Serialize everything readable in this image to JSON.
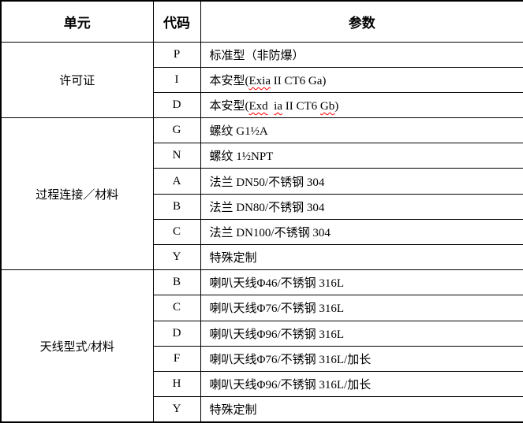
{
  "colors": {
    "border": "#000000",
    "text": "#000000",
    "background": "#ffffff",
    "spellcheck_underline": "#ff0000"
  },
  "table": {
    "headers": {
      "unit": "单元",
      "code": "代码",
      "param": "参数"
    },
    "groups": [
      {
        "unit": "许可证",
        "rows": [
          {
            "code": "P",
            "param": [
              {
                "text": "标准型（非防爆）"
              }
            ]
          },
          {
            "code": "I",
            "param": [
              {
                "text": "本安型("
              },
              {
                "text": "Exia",
                "misspelled": true
              },
              {
                "text": " II CT6 Ga)"
              }
            ]
          },
          {
            "code": "D",
            "param": [
              {
                "text": "本安型("
              },
              {
                "text": "Exd",
                "misspelled": true
              },
              {
                "text": "  "
              },
              {
                "text": "ia",
                "misspelled": true
              },
              {
                "text": " II CT6 "
              },
              {
                "text": "Gb",
                "misspelled": true
              },
              {
                "text": ")"
              }
            ]
          }
        ]
      },
      {
        "unit": "过程连接／材料",
        "rows": [
          {
            "code": "G",
            "param": [
              {
                "text": "螺纹 G1½A"
              }
            ]
          },
          {
            "code": "N",
            "param": [
              {
                "text": "螺纹 1½NPT"
              }
            ]
          },
          {
            "code": "A",
            "param": [
              {
                "text": "法兰 DN50/不锈钢 304"
              }
            ]
          },
          {
            "code": "B",
            "param": [
              {
                "text": "法兰 DN80/不锈钢 304"
              }
            ]
          },
          {
            "code": "C",
            "param": [
              {
                "text": "法兰 DN100/不锈钢 304"
              }
            ]
          },
          {
            "code": "Y",
            "param": [
              {
                "text": "特殊定制"
              }
            ]
          }
        ]
      },
      {
        "unit": "天线型式/材料",
        "rows": [
          {
            "code": "B",
            "param": [
              {
                "text": "喇叭天线Φ46/不锈钢 316L"
              }
            ]
          },
          {
            "code": "C",
            "param": [
              {
                "text": "喇叭天线Φ76/不锈钢 316L"
              }
            ]
          },
          {
            "code": "D",
            "param": [
              {
                "text": "喇叭天线Φ96/不锈钢 316L"
              }
            ]
          },
          {
            "code": "F",
            "param": [
              {
                "text": "喇叭天线Φ76/不锈钢 316L/加长"
              }
            ]
          },
          {
            "code": "H",
            "param": [
              {
                "text": "喇叭天线Φ96/不锈钢 316L/加长"
              }
            ]
          },
          {
            "code": "Y",
            "param": [
              {
                "text": "特殊定制"
              }
            ]
          }
        ]
      }
    ]
  }
}
